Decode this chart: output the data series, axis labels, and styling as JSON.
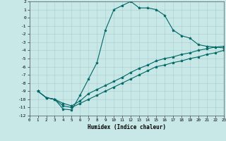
{
  "xlabel": "Humidex (Indice chaleur)",
  "background_color": "#c8e8e8",
  "grid_color": "#aacccc",
  "line_color": "#006666",
  "xlim": [
    0,
    23
  ],
  "ylim": [
    -12,
    2
  ],
  "xticks": [
    0,
    1,
    2,
    3,
    4,
    5,
    6,
    7,
    8,
    9,
    10,
    11,
    12,
    13,
    14,
    15,
    16,
    17,
    18,
    19,
    20,
    21,
    22,
    23
  ],
  "yticks": [
    2,
    1,
    0,
    -1,
    -2,
    -3,
    -4,
    -5,
    -6,
    -7,
    -8,
    -9,
    -10,
    -11,
    -12
  ],
  "series": [
    {
      "x": [
        1,
        2,
        3,
        4,
        5,
        6,
        7,
        8,
        9,
        10,
        11,
        12,
        13,
        14,
        15,
        16,
        17,
        18,
        19,
        20,
        21,
        22,
        23
      ],
      "y": [
        -9.0,
        -9.8,
        -10.0,
        -11.2,
        -11.3,
        -9.5,
        -7.5,
        -5.5,
        -1.5,
        1.0,
        1.5,
        2.0,
        1.2,
        1.2,
        1.0,
        0.3,
        -1.5,
        -2.2,
        -2.5,
        -3.3,
        -3.5,
        -3.6,
        -3.7
      ]
    },
    {
      "x": [
        1,
        2,
        3,
        4,
        5,
        6,
        7,
        8,
        9,
        10,
        11,
        12,
        13,
        14,
        15,
        16,
        17,
        18,
        19,
        20,
        21,
        22,
        23
      ],
      "y": [
        -9.0,
        -9.8,
        -10.0,
        -10.5,
        -10.8,
        -10.2,
        -9.3,
        -8.8,
        -8.3,
        -7.8,
        -7.3,
        -6.7,
        -6.2,
        -5.8,
        -5.3,
        -5.0,
        -4.8,
        -4.5,
        -4.3,
        -4.0,
        -3.8,
        -3.6,
        -3.5
      ]
    },
    {
      "x": [
        1,
        2,
        3,
        4,
        5,
        6,
        7,
        8,
        9,
        10,
        11,
        12,
        13,
        14,
        15,
        16,
        17,
        18,
        19,
        20,
        21,
        22,
        23
      ],
      "y": [
        -9.0,
        -9.8,
        -10.0,
        -10.8,
        -11.0,
        -10.5,
        -10.0,
        -9.5,
        -9.0,
        -8.5,
        -8.0,
        -7.5,
        -7.0,
        -6.5,
        -6.0,
        -5.8,
        -5.5,
        -5.3,
        -5.0,
        -4.8,
        -4.5,
        -4.3,
        -4.0
      ]
    }
  ]
}
